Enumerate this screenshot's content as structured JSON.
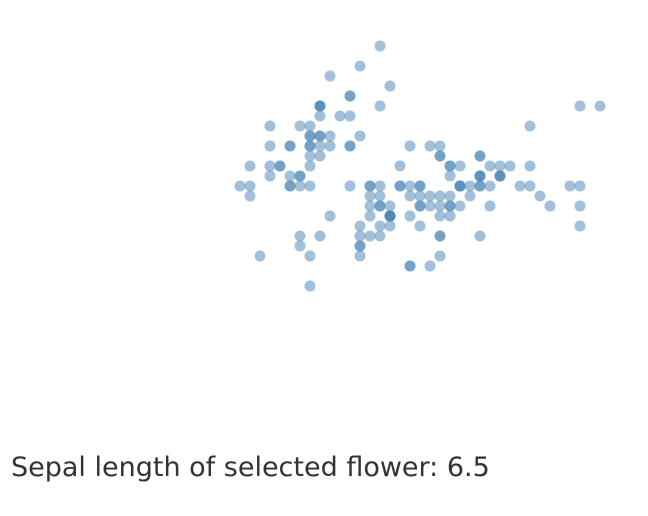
{
  "caption": {
    "label": "Sepal length of selected flower:",
    "value": "6.5"
  },
  "chart_data": {
    "type": "scatter",
    "title": "",
    "xlabel": "",
    "ylabel": "",
    "grid": false,
    "legend": "none",
    "point_color": "#4682b4",
    "point_opacity": 0.5,
    "xlim": [
      4.3,
      7.9
    ],
    "ylim": [
      2.0,
      4.4
    ],
    "x": [
      5.1,
      4.9,
      4.7,
      4.6,
      5.0,
      5.4,
      4.6,
      5.0,
      4.4,
      4.9,
      5.4,
      4.8,
      4.8,
      4.3,
      5.8,
      5.7,
      5.4,
      5.1,
      5.7,
      5.1,
      5.4,
      5.1,
      4.6,
      5.1,
      4.8,
      5.0,
      5.0,
      5.2,
      5.2,
      4.7,
      4.8,
      5.4,
      5.2,
      5.5,
      4.9,
      5.0,
      5.5,
      4.9,
      4.4,
      5.1,
      5.0,
      4.5,
      4.4,
      5.0,
      5.1,
      4.8,
      5.1,
      4.6,
      5.3,
      5.0,
      7.0,
      6.4,
      6.9,
      5.5,
      6.5,
      5.7,
      6.3,
      4.9,
      6.6,
      5.2,
      5.0,
      5.9,
      6.0,
      6.1,
      5.6,
      6.7,
      5.6,
      5.8,
      6.2,
      5.6,
      5.9,
      6.1,
      6.3,
      6.1,
      6.4,
      6.6,
      6.8,
      6.7,
      6.0,
      5.7,
      5.5,
      5.5,
      5.8,
      6.0,
      5.4,
      6.0,
      6.7,
      6.3,
      5.6,
      5.5,
      5.5,
      6.1,
      5.8,
      5.0,
      5.6,
      5.7,
      5.7,
      6.2,
      5.1,
      5.7,
      6.3,
      5.8,
      7.1,
      6.3,
      6.5,
      7.6,
      4.9,
      7.3,
      6.7,
      7.2,
      6.5,
      6.4,
      6.8,
      5.7,
      5.8,
      6.4,
      6.5,
      7.7,
      7.7,
      6.0,
      6.9,
      5.6,
      7.7,
      6.3,
      6.7,
      7.2,
      6.2,
      6.1,
      6.4,
      7.2,
      7.4,
      7.9,
      6.4,
      6.3,
      6.1,
      7.7,
      6.3,
      6.4,
      6.0,
      6.9,
      6.7,
      6.9,
      5.8,
      6.8,
      6.7,
      6.7,
      6.3,
      6.5,
      6.2,
      5.9
    ],
    "y": [
      3.5,
      3.0,
      3.2,
      3.1,
      3.6,
      3.9,
      3.4,
      3.4,
      2.9,
      3.1,
      3.7,
      3.4,
      3.0,
      3.0,
      4.0,
      4.4,
      3.9,
      3.5,
      3.8,
      3.8,
      3.4,
      3.7,
      3.6,
      3.3,
      3.4,
      3.0,
      3.4,
      3.5,
      3.4,
      3.2,
      3.1,
      3.4,
      4.1,
      4.2,
      3.1,
      3.2,
      3.5,
      3.6,
      3.0,
      3.4,
      3.5,
      2.3,
      3.2,
      3.5,
      3.8,
      3.0,
      3.8,
      3.2,
      3.7,
      3.3,
      3.2,
      3.2,
      3.1,
      2.3,
      2.8,
      2.8,
      3.3,
      2.4,
      2.9,
      2.7,
      2.0,
      3.0,
      2.2,
      2.9,
      2.9,
      3.1,
      3.0,
      2.7,
      2.2,
      2.5,
      3.2,
      2.8,
      2.5,
      2.8,
      2.9,
      3.0,
      2.8,
      3.0,
      2.9,
      2.6,
      2.4,
      2.4,
      2.7,
      2.7,
      3.0,
      3.4,
      3.1,
      2.3,
      3.0,
      2.5,
      2.6,
      3.0,
      2.6,
      2.3,
      2.7,
      3.0,
      2.9,
      2.9,
      2.5,
      2.8,
      3.3,
      2.7,
      3.0,
      2.9,
      3.0,
      3.0,
      2.5,
      2.9,
      2.5,
      3.6,
      3.2,
      2.7,
      3.0,
      2.5,
      2.8,
      3.2,
      3.0,
      3.8,
      2.6,
      2.2,
      3.2,
      2.8,
      2.8,
      2.7,
      3.3,
      3.2,
      2.8,
      3.0,
      2.8,
      3.0,
      2.8,
      3.8,
      2.8,
      2.8,
      2.6,
      3.0,
      3.4,
      3.1,
      3.0,
      3.1,
      3.1,
      3.1,
      2.7,
      3.2,
      3.3,
      3.0,
      2.5,
      3.0,
      3.4,
      3.0
    ]
  }
}
